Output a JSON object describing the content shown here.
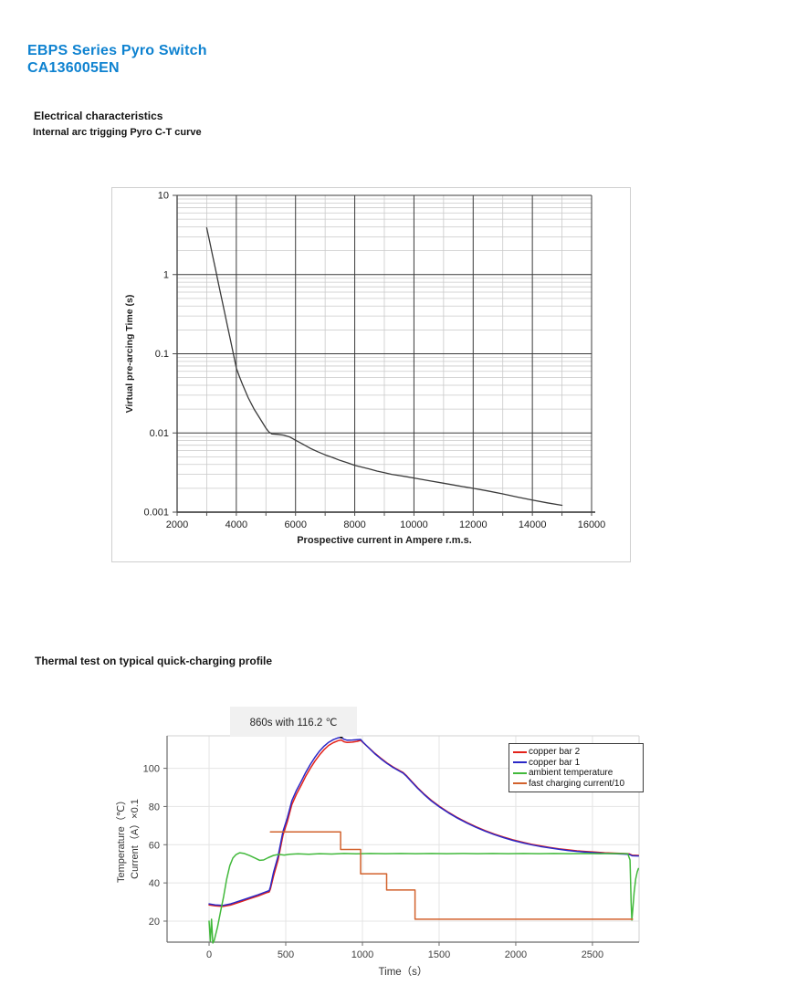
{
  "header": {
    "title_line1": "EBPS Series Pyro Switch",
    "title_line2": "CA136005EN",
    "accent_color": "#0e82d0"
  },
  "section1": {
    "heading": "Electrical characteristics",
    "subheading": "Internal arc trigging Pyro C-T curve"
  },
  "section2": {
    "heading": "Thermal test on typical quick-charging profile"
  },
  "chart_data": [
    {
      "id": "ct_curve",
      "type": "line",
      "title": "",
      "xlabel": "Prospective current in Ampere r.m.s.",
      "ylabel": "Virtual pre-arcing Time (s)",
      "x_scale": "linear",
      "y_scale": "log",
      "xlim": [
        2000,
        16000
      ],
      "ylim": [
        0.001,
        10
      ],
      "x_ticks": [
        2000,
        4000,
        6000,
        8000,
        10000,
        12000,
        14000,
        16000
      ],
      "x_minor_step": 1000,
      "y_ticks": [
        10,
        1,
        0.1,
        0.01,
        0.001
      ],
      "y_tick_labels": [
        "10",
        "1",
        "0.1",
        "0.01",
        "0.001"
      ],
      "grid": "major-and-minor",
      "legend": "none",
      "series": [
        {
          "name": "pre-arcing time",
          "color": "#3a3a3a",
          "points": [
            [
              3000,
              3.9
            ],
            [
              3100,
              2.6
            ],
            [
              3200,
              1.73
            ],
            [
              3300,
              1.15
            ],
            [
              3400,
              0.76
            ],
            [
              3500,
              0.51
            ],
            [
              3600,
              0.338
            ],
            [
              3700,
              0.225
            ],
            [
              3800,
              0.15
            ],
            [
              3900,
              0.1
            ],
            [
              4000,
              0.066
            ],
            [
              4100,
              0.052
            ],
            [
              4200,
              0.042
            ],
            [
              4400,
              0.028
            ],
            [
              4600,
              0.02
            ],
            [
              4800,
              0.0152
            ],
            [
              5000,
              0.0115
            ],
            [
              5100,
              0.0103
            ],
            [
              5200,
              0.0097
            ],
            [
              5400,
              0.0096
            ],
            [
              5600,
              0.0094
            ],
            [
              5800,
              0.0089
            ],
            [
              6000,
              0.0081
            ],
            [
              6250,
              0.0072
            ],
            [
              6500,
              0.0064
            ],
            [
              6750,
              0.0058
            ],
            [
              7000,
              0.0053
            ],
            [
              7250,
              0.0049
            ],
            [
              7500,
              0.0045
            ],
            [
              7750,
              0.0042
            ],
            [
              8000,
              0.0039
            ],
            [
              8250,
              0.0037
            ],
            [
              8500,
              0.0035
            ],
            [
              8750,
              0.0033
            ],
            [
              9000,
              0.00315
            ],
            [
              9250,
              0.003
            ],
            [
              9500,
              0.0029
            ],
            [
              9750,
              0.0028
            ],
            [
              10000,
              0.0027
            ],
            [
              10500,
              0.0025
            ],
            [
              11000,
              0.00232
            ],
            [
              11500,
              0.00215
            ],
            [
              12000,
              0.002
            ],
            [
              12500,
              0.00185
            ],
            [
              13000,
              0.0017
            ],
            [
              13500,
              0.00155
            ],
            [
              14000,
              0.00142
            ],
            [
              14500,
              0.00131
            ],
            [
              15000,
              0.00122
            ]
          ]
        }
      ]
    },
    {
      "id": "thermal_test",
      "type": "line",
      "title": "",
      "annotation": "860s with 116.2 ℃",
      "xlabel": "Time（s）",
      "ylabel_line1": "Temperature（℃）",
      "ylabel_line2": "Current（A）×0.1",
      "x_scale": "linear",
      "y_scale": "linear",
      "xlim": [
        -274,
        2804
      ],
      "ylim": [
        9,
        117
      ],
      "x_ticks": [
        0,
        500,
        1000,
        1500,
        2000,
        2500
      ],
      "y_ticks": [
        20,
        40,
        60,
        80,
        100
      ],
      "grid": "light-major",
      "legend_position": "top-right",
      "peak_marker": {
        "x": 862,
        "y": 116.4,
        "color": "#111111"
      },
      "series": [
        {
          "name": "copper bar 2",
          "color": "#e3221a",
          "points": [
            [
              0,
              28.5
            ],
            [
              40,
              28
            ],
            [
              90,
              27.7
            ],
            [
              140,
              28.4
            ],
            [
              200,
              30
            ],
            [
              260,
              31.6
            ],
            [
              320,
              33.2
            ],
            [
              380,
              35
            ],
            [
              392,
              35.3
            ],
            [
              400,
              36.8
            ],
            [
              420,
              43.5
            ],
            [
              450,
              52
            ],
            [
              482,
              65
            ],
            [
              510,
              72
            ],
            [
              540,
              81
            ],
            [
              570,
              86.5
            ],
            [
              600,
              91
            ],
            [
              630,
              95.8
            ],
            [
              660,
              100
            ],
            [
              690,
              103.7
            ],
            [
              720,
              107
            ],
            [
              750,
              109.8
            ],
            [
              780,
              112
            ],
            [
              810,
              113.4
            ],
            [
              840,
              114.4
            ],
            [
              862,
              114.8
            ],
            [
              880,
              113.9
            ],
            [
              900,
              113.5
            ],
            [
              935,
              113.7
            ],
            [
              965,
              114.1
            ],
            [
              988,
              114.6
            ],
            [
              1005,
              113.4
            ],
            [
              1040,
              110.9
            ],
            [
              1080,
              107.9
            ],
            [
              1120,
              105.3
            ],
            [
              1160,
              102.8
            ],
            [
              1200,
              100.7
            ],
            [
              1240,
              98.9
            ],
            [
              1265,
              97.8
            ],
            [
              1285,
              96.3
            ],
            [
              1320,
              93.3
            ],
            [
              1360,
              89.8
            ],
            [
              1400,
              86.7
            ],
            [
              1450,
              83.2
            ],
            [
              1500,
              80.2
            ],
            [
              1560,
              77
            ],
            [
              1620,
              74.2
            ],
            [
              1680,
              71.7
            ],
            [
              1740,
              69.4
            ],
            [
              1800,
              67.4
            ],
            [
              1860,
              65.6
            ],
            [
              1920,
              64
            ],
            [
              1980,
              62.6
            ],
            [
              2040,
              61.4
            ],
            [
              2100,
              60.3
            ],
            [
              2160,
              59.4
            ],
            [
              2220,
              58.6
            ],
            [
              2280,
              57.9
            ],
            [
              2340,
              57.3
            ],
            [
              2400,
              56.8
            ],
            [
              2460,
              56.4
            ],
            [
              2520,
              56.1
            ],
            [
              2580,
              55.8
            ],
            [
              2640,
              55.6
            ],
            [
              2700,
              55.4
            ],
            [
              2740,
              55.2
            ],
            [
              2760,
              54.5
            ],
            [
              2800,
              54.4
            ]
          ]
        },
        {
          "name": "copper bar 1",
          "color": "#2b28c6",
          "points": [
            [
              0,
              29
            ],
            [
              40,
              28.5
            ],
            [
              90,
              28.2
            ],
            [
              140,
              29
            ],
            [
              200,
              30.6
            ],
            [
              260,
              32.2
            ],
            [
              320,
              33.8
            ],
            [
              380,
              35.6
            ],
            [
              392,
              36
            ],
            [
              400,
              38
            ],
            [
              420,
              45.5
            ],
            [
              450,
              54
            ],
            [
              482,
              67
            ],
            [
              510,
              74
            ],
            [
              540,
              83
            ],
            [
              570,
              88.5
            ],
            [
              600,
              93
            ],
            [
              630,
              97.8
            ],
            [
              660,
              102
            ],
            [
              690,
              105.7
            ],
            [
              720,
              109
            ],
            [
              750,
              111.6
            ],
            [
              780,
              113.6
            ],
            [
              810,
              115
            ],
            [
              840,
              115.9
            ],
            [
              862,
              116.2
            ],
            [
              880,
              115.2
            ],
            [
              900,
              114.7
            ],
            [
              935,
              114.8
            ],
            [
              965,
              115
            ],
            [
              988,
              115.1
            ],
            [
              1005,
              113.6
            ],
            [
              1040,
              110.8
            ],
            [
              1080,
              107.7
            ],
            [
              1120,
              105
            ],
            [
              1160,
              102.5
            ],
            [
              1200,
              100.4
            ],
            [
              1240,
              98.6
            ],
            [
              1265,
              97.5
            ],
            [
              1285,
              96
            ],
            [
              1320,
              93
            ],
            [
              1360,
              89.5
            ],
            [
              1400,
              86.4
            ],
            [
              1450,
              82.9
            ],
            [
              1500,
              79.9
            ],
            [
              1560,
              76.7
            ],
            [
              1620,
              73.9
            ],
            [
              1680,
              71.4
            ],
            [
              1740,
              69.1
            ],
            [
              1800,
              67.1
            ],
            [
              1860,
              65.3
            ],
            [
              1920,
              63.7
            ],
            [
              1980,
              62.3
            ],
            [
              2040,
              61.1
            ],
            [
              2100,
              60
            ],
            [
              2160,
              59.1
            ],
            [
              2220,
              58.3
            ],
            [
              2280,
              57.6
            ],
            [
              2340,
              57
            ],
            [
              2400,
              56.5
            ],
            [
              2460,
              56.1
            ],
            [
              2520,
              55.8
            ],
            [
              2580,
              55.5
            ],
            [
              2640,
              55.3
            ],
            [
              2700,
              55.1
            ],
            [
              2740,
              54.9
            ],
            [
              2760,
              54.2
            ],
            [
              2800,
              54.1
            ]
          ]
        },
        {
          "name": "ambient temperature",
          "color": "#42b93c",
          "points": [
            [
              0,
              20
            ],
            [
              8,
              9.5
            ],
            [
              16,
              21
            ],
            [
              24,
              8.5
            ],
            [
              34,
              10
            ],
            [
              55,
              17
            ],
            [
              75,
              25
            ],
            [
              95,
              33
            ],
            [
              115,
              42
            ],
            [
              135,
              49
            ],
            [
              155,
              53
            ],
            [
              175,
              54.8
            ],
            [
              200,
              55.8
            ],
            [
              230,
              55.4
            ],
            [
              265,
              54.3
            ],
            [
              300,
              53
            ],
            [
              330,
              51.8
            ],
            [
              355,
              52
            ],
            [
              385,
              53.2
            ],
            [
              420,
              54.4
            ],
            [
              455,
              54.9
            ],
            [
              490,
              54.6
            ],
            [
              525,
              55
            ],
            [
              580,
              55.2
            ],
            [
              650,
              55
            ],
            [
              720,
              55.3
            ],
            [
              800,
              55.1
            ],
            [
              880,
              55.4
            ],
            [
              960,
              55.2
            ],
            [
              1050,
              55.4
            ],
            [
              1150,
              55.3
            ],
            [
              1250,
              55.4
            ],
            [
              1350,
              55.3
            ],
            [
              1450,
              55.4
            ],
            [
              1550,
              55.3
            ],
            [
              1650,
              55.4
            ],
            [
              1750,
              55.3
            ],
            [
              1850,
              55.4
            ],
            [
              1950,
              55.3
            ],
            [
              2050,
              55.4
            ],
            [
              2150,
              55.3
            ],
            [
              2250,
              55.4
            ],
            [
              2350,
              55.3
            ],
            [
              2450,
              55.4
            ],
            [
              2550,
              55.3
            ],
            [
              2650,
              55.4
            ],
            [
              2730,
              55.3
            ],
            [
              2745,
              52
            ],
            [
              2752,
              30
            ],
            [
              2757,
              20.5
            ],
            [
              2763,
              26
            ],
            [
              2772,
              35
            ],
            [
              2782,
              42
            ],
            [
              2792,
              45.8
            ],
            [
              2800,
              47.5
            ]
          ]
        },
        {
          "name": "fast charging current/10",
          "color": "#d2622d",
          "points": [
            [
              400,
              66.7
            ],
            [
              858,
              66.7
            ],
            [
              858,
              57.5
            ],
            [
              988,
              57.5
            ],
            [
              988,
              44.8
            ],
            [
              1158,
              44.8
            ],
            [
              1158,
              36.3
            ],
            [
              1343,
              36.3
            ],
            [
              1343,
              21
            ],
            [
              2762,
              21
            ]
          ]
        }
      ]
    }
  ]
}
